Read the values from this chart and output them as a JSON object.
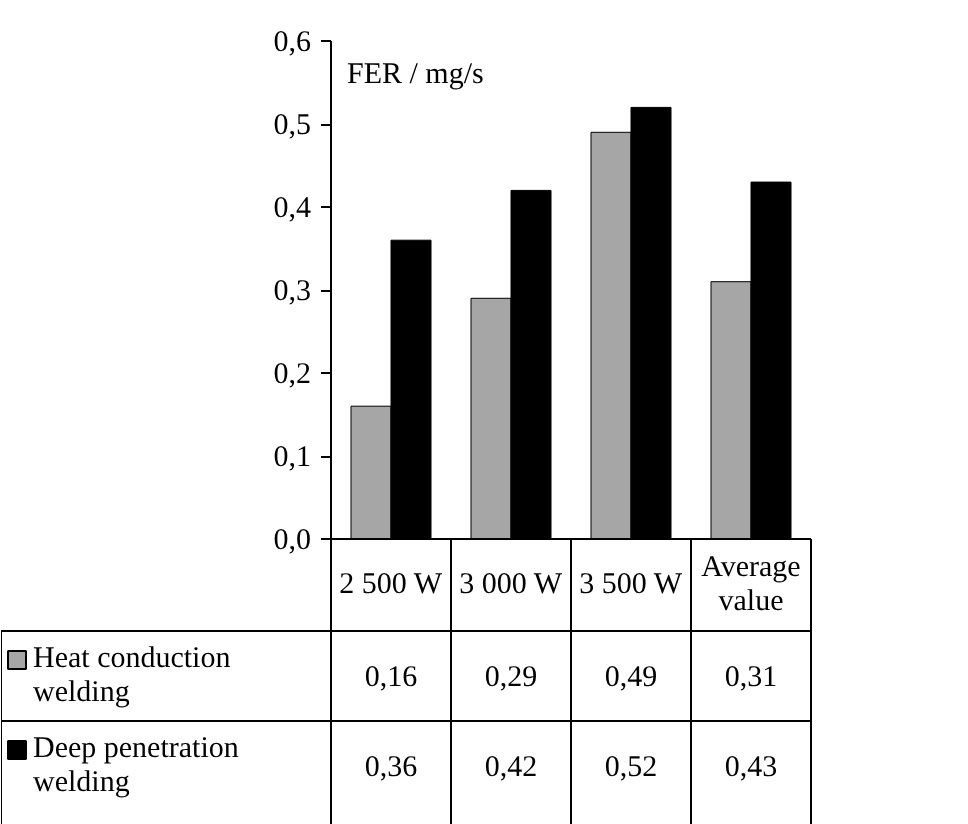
{
  "chart_data": {
    "type": "bar",
    "ylabel": "FER / mg/s",
    "categories": [
      "2 500 W",
      "3 000 W",
      "3 500 W",
      "Average value"
    ],
    "series": [
      {
        "name": "Heat conduction welding",
        "color": "#a6a6a6",
        "values": [
          0.16,
          0.29,
          0.49,
          0.31
        ],
        "value_labels": [
          "0,16",
          "0,29",
          "0,49",
          "0,31"
        ]
      },
      {
        "name": "Deep penetration welding",
        "color": "#000000",
        "values": [
          0.36,
          0.42,
          0.52,
          0.43
        ],
        "value_labels": [
          "0,36",
          "0,42",
          "0,52",
          "0,43"
        ]
      }
    ],
    "ylim": [
      0,
      0.6
    ],
    "yticks": [
      {
        "value": 0,
        "label": "0,0"
      },
      {
        "value": 0.1,
        "label": "0,1"
      },
      {
        "value": 0.2,
        "label": "0,2"
      },
      {
        "value": 0.3,
        "label": "0,3"
      },
      {
        "value": 0.4,
        "label": "0,4"
      },
      {
        "value": 0.5,
        "label": "0,5"
      },
      {
        "value": 0.6,
        "label": "0,6"
      }
    ],
    "grid": false,
    "legend": "bottom"
  }
}
